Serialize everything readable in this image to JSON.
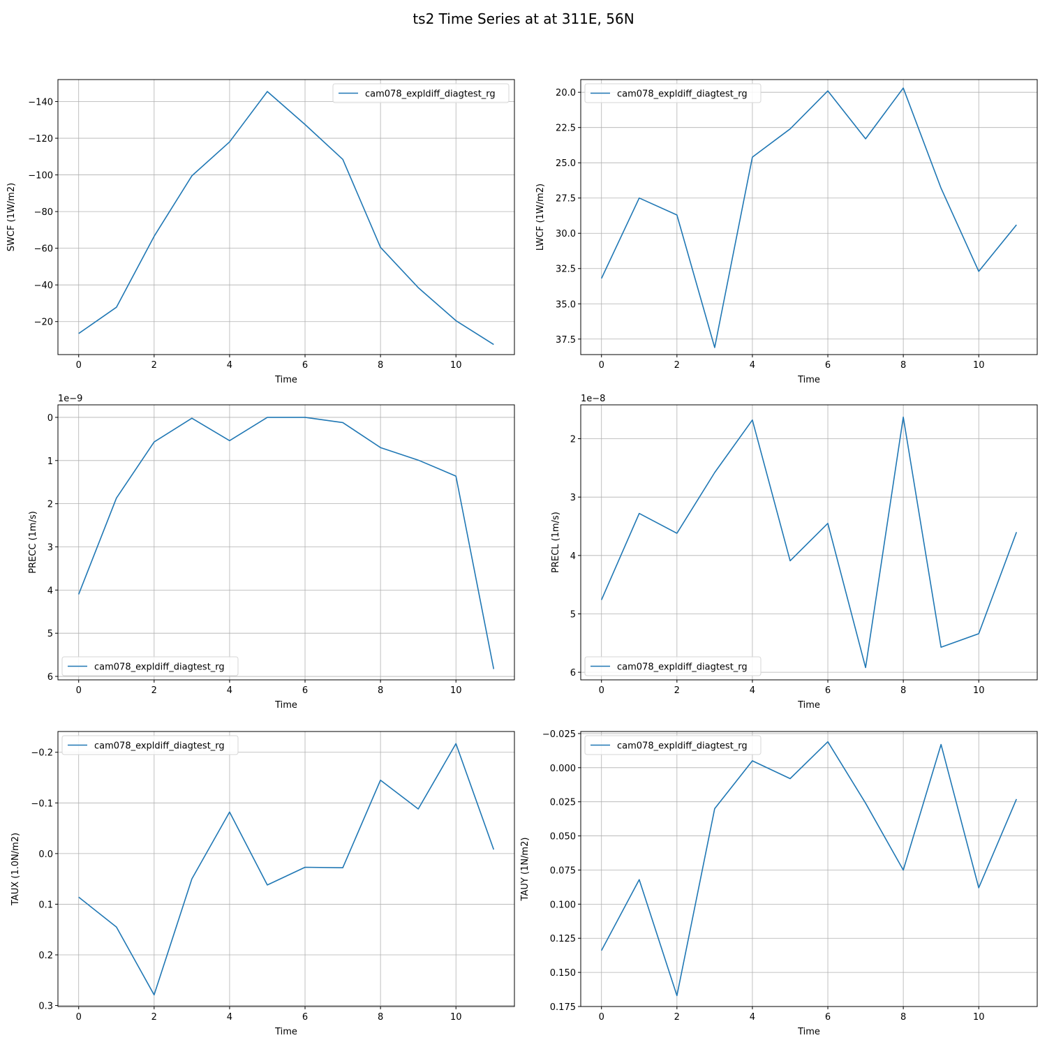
{
  "figure": {
    "title": "ts2 Time Series at at 311E, 56N"
  },
  "line_color": "#1f77b4",
  "chart_data": [
    {
      "type": "line",
      "xlabel": "Time",
      "ylabel": "SWCF (1W/m2)",
      "series": [
        {
          "name": "cam078_expldiff_diagtest_rg",
          "x": [
            0,
            1,
            2,
            3,
            4,
            5,
            6,
            7,
            8,
            9,
            10,
            11
          ],
          "values": [
            -13.5,
            -27.8,
            -66.5,
            -99.5,
            -118,
            -145.5,
            -127.5,
            -108.5,
            -60.5,
            -38.5,
            -20.5,
            -7.5
          ]
        }
      ],
      "xlim": [
        -0.55,
        11.55
      ],
      "ylim": [
        -2,
        -152
      ],
      "y_inverted": true,
      "xticks": [
        0,
        2,
        4,
        6,
        8,
        10
      ],
      "xticklabels": [
        "0",
        "2",
        "4",
        "6",
        "8",
        "10"
      ],
      "yticks": [
        -20,
        -40,
        -60,
        -80,
        -100,
        -120,
        -140
      ],
      "yticklabels": [
        "−20",
        "−40",
        "−60",
        "−80",
        "−100",
        "−120",
        "−140"
      ],
      "offset_text": "",
      "legend_loc": "upper right",
      "grid": true
    },
    {
      "type": "line",
      "xlabel": "Time",
      "ylabel": "LWCF (1W/m2)",
      "series": [
        {
          "name": "cam078_expldiff_diagtest_rg",
          "x": [
            0,
            1,
            2,
            3,
            4,
            5,
            6,
            7,
            8,
            9,
            10,
            11
          ],
          "values": [
            33.2,
            27.5,
            28.7,
            38.1,
            24.6,
            22.6,
            19.9,
            23.3,
            19.7,
            26.8,
            32.7,
            29.4
          ]
        }
      ],
      "xlim": [
        -0.55,
        11.55
      ],
      "ylim": [
        38.6,
        19.1
      ],
      "y_inverted": true,
      "xticks": [
        0,
        2,
        4,
        6,
        8,
        10
      ],
      "xticklabels": [
        "0",
        "2",
        "4",
        "6",
        "8",
        "10"
      ],
      "yticks": [
        20,
        22.5,
        25,
        27.5,
        30,
        32.5,
        35,
        37.5
      ],
      "yticklabels": [
        "20.0",
        "22.5",
        "25.0",
        "27.5",
        "30.0",
        "32.5",
        "35.0",
        "37.5"
      ],
      "offset_text": "",
      "legend_loc": "upper left",
      "grid": true
    },
    {
      "type": "line",
      "xlabel": "Time",
      "ylabel": "PRECC (1m/s)",
      "series": [
        {
          "name": "cam078_expldiff_diagtest_rg",
          "x": [
            0,
            1,
            2,
            3,
            4,
            5,
            6,
            7,
            8,
            9,
            10,
            11
          ],
          "values": [
            4.1,
            1.87,
            0.57,
            0.02,
            0.54,
            0.0,
            0.0,
            0.12,
            0.7,
            0.99,
            1.36,
            5.83
          ]
        }
      ],
      "xlim": [
        -0.55,
        11.55
      ],
      "ylim": [
        6.08,
        -0.29
      ],
      "y_inverted": true,
      "xticks": [
        0,
        2,
        4,
        6,
        8,
        10
      ],
      "xticklabels": [
        "0",
        "2",
        "4",
        "6",
        "8",
        "10"
      ],
      "yticks": [
        0,
        1,
        2,
        3,
        4,
        5,
        6
      ],
      "yticklabels": [
        "0",
        "1",
        "2",
        "3",
        "4",
        "5",
        "6"
      ],
      "offset_text": "1e−9",
      "legend_loc": "lower left",
      "grid": true
    },
    {
      "type": "line",
      "xlabel": "Time",
      "ylabel": "PRECL (1m/s)",
      "series": [
        {
          "name": "cam078_expldiff_diagtest_rg",
          "x": [
            0,
            1,
            2,
            3,
            4,
            5,
            6,
            7,
            8,
            9,
            10,
            11
          ],
          "values": [
            4.76,
            3.28,
            3.62,
            2.58,
            1.68,
            4.09,
            3.45,
            5.92,
            1.63,
            5.57,
            5.34,
            3.6
          ]
        }
      ],
      "xlim": [
        -0.55,
        11.55
      ],
      "ylim": [
        6.13,
        1.42
      ],
      "y_inverted": true,
      "xticks": [
        0,
        2,
        4,
        6,
        8,
        10
      ],
      "xticklabels": [
        "0",
        "2",
        "4",
        "6",
        "8",
        "10"
      ],
      "yticks": [
        2,
        3,
        4,
        5,
        6
      ],
      "yticklabels": [
        "2",
        "3",
        "4",
        "5",
        "6"
      ],
      "offset_text": "1e−8",
      "legend_loc": "lower left",
      "grid": true
    },
    {
      "type": "line",
      "xlabel": "Time",
      "ylabel": "TAUX (1.0N/m2)",
      "series": [
        {
          "name": "cam078_expldiff_diagtest_rg",
          "x": [
            0,
            1,
            2,
            3,
            4,
            5,
            6,
            7,
            8,
            9,
            10,
            11
          ],
          "values": [
            0.086,
            0.145,
            0.279,
            0.05,
            -0.082,
            0.062,
            0.027,
            0.028,
            -0.145,
            -0.088,
            -0.217,
            -0.008
          ]
        }
      ],
      "xlim": [
        -0.55,
        11.55
      ],
      "ylim": [
        0.302,
        -0.241
      ],
      "y_inverted": true,
      "xticks": [
        0,
        2,
        4,
        6,
        8,
        10
      ],
      "xticklabels": [
        "0",
        "2",
        "4",
        "6",
        "8",
        "10"
      ],
      "yticks": [
        -0.2,
        -0.1,
        0,
        0.1,
        0.2,
        0.3
      ],
      "yticklabels": [
        "−0.2",
        "−0.1",
        "0.0",
        "0.1",
        "0.2",
        "0.3"
      ],
      "offset_text": "",
      "legend_loc": "upper left",
      "grid": true
    },
    {
      "type": "line",
      "xlabel": "Time",
      "ylabel": "TAUY (1N/m2)",
      "series": [
        {
          "name": "cam078_expldiff_diagtest_rg",
          "x": [
            0,
            1,
            2,
            3,
            4,
            5,
            6,
            7,
            8,
            9,
            10,
            11
          ],
          "values": [
            0.134,
            0.082,
            0.167,
            0.03,
            -0.005,
            0.008,
            -0.019,
            0.026,
            0.075,
            -0.017,
            0.088,
            0.023
          ]
        }
      ],
      "xlim": [
        -0.55,
        11.55
      ],
      "ylim": [
        0.175,
        -0.0265
      ],
      "y_inverted": true,
      "xticks": [
        0,
        2,
        4,
        6,
        8,
        10
      ],
      "xticklabels": [
        "0",
        "2",
        "4",
        "6",
        "8",
        "10"
      ],
      "yticks": [
        -0.025,
        0,
        0.025,
        0.05,
        0.075,
        0.1,
        0.125,
        0.15,
        0.175
      ],
      "yticklabels": [
        "−0.025",
        "0.000",
        "0.025",
        "0.050",
        "0.075",
        "0.100",
        "0.125",
        "0.150",
        "0.175"
      ],
      "offset_text": "",
      "legend_loc": "upper left",
      "grid": true
    }
  ]
}
